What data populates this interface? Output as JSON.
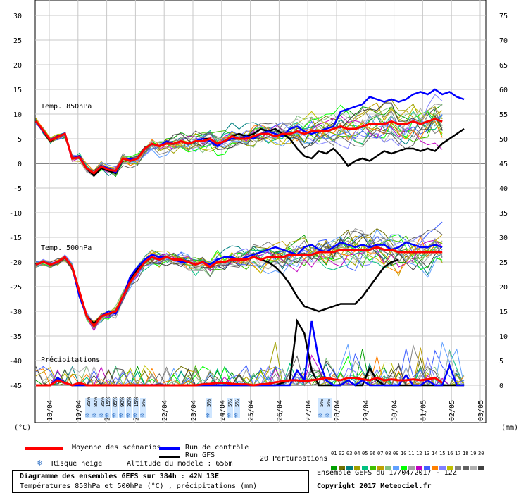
{
  "chart_data": {
    "type": "line",
    "title": "Diagramme des ensembles GEFS sur 384h : 42N 13E",
    "subtitle": "Températures 850hPa et 500hPa (°C) , précipitations (mm)",
    "left_axis": {
      "unit": "(°C)",
      "ticks": [
        30,
        25,
        20,
        15,
        10,
        5,
        0,
        -5,
        -10,
        -15,
        -20,
        -25,
        -30,
        -35,
        -40,
        -45
      ]
    },
    "right_axis": {
      "unit": "(mm)",
      "ticks": [
        75,
        70,
        65,
        60,
        55,
        50,
        45,
        40,
        35,
        30,
        25,
        20,
        15,
        10,
        5,
        0
      ],
      "ylim": [
        0,
        75
      ]
    },
    "x_labels": [
      "18/04",
      "19/04",
      "20/04",
      "21/04",
      "22/04",
      "23/04",
      "24/04",
      "25/04",
      "26/04",
      "27/04",
      "28/04",
      "29/04",
      "30/04",
      "01/05",
      "02/05",
      "03/05"
    ],
    "panel_labels": {
      "t850": "Temp. 850hPa",
      "t500": "Temp. 500hPa",
      "precip": "Précipitations"
    },
    "series": [
      {
        "name": "Moyenne des scénarios",
        "color": "#ff0000",
        "t850": [
          8.6,
          6.7,
          4.7,
          5.4,
          6.0,
          1.0,
          1.2,
          -1.0,
          -2.0,
          -0.6,
          -1.3,
          -1.5,
          1.0,
          0.5,
          1.0,
          3.0,
          4.0,
          3.5,
          4.0,
          4.0,
          4.5,
          4.0,
          4.5,
          4.5,
          5.0,
          4.0,
          4.5,
          5.5,
          5.0,
          5.0,
          5.5,
          6.0,
          6.0,
          5.5,
          6.0,
          6.0,
          6.5,
          6.0,
          6.5,
          6.5,
          6.5,
          7.0,
          7.5,
          7.0,
          7.0,
          7.5,
          8.0,
          8.0,
          8.0,
          8.5,
          8.0,
          8.0,
          8.5,
          8.0,
          8.5,
          9.0,
          8.5
        ],
        "t500": [
          -20.5,
          -20.0,
          -20.5,
          -20.0,
          -19.0,
          -21.0,
          -26.0,
          -31.0,
          -33.0,
          -31.0,
          -30.5,
          -30.0,
          -27.0,
          -24.0,
          -22.0,
          -20.0,
          -19.0,
          -19.5,
          -19.0,
          -19.5,
          -19.5,
          -20.0,
          -20.5,
          -20.0,
          -21.0,
          -20.0,
          -20.0,
          -19.5,
          -19.5,
          -19.5,
          -19.0,
          -19.5,
          -19.0,
          -19.0,
          -19.0,
          -18.5,
          -18.5,
          -18.5,
          -18.5,
          -18.0,
          -18.0,
          -18.0,
          -17.5,
          -17.5,
          -17.5,
          -17.5,
          -17.5,
          -17.0,
          -17.5,
          -17.5,
          -18.0,
          -18.0,
          -18.0,
          -18.0,
          -18.0,
          -18.0,
          -18.0
        ],
        "precip": [
          0.0,
          0.0,
          0.0,
          1.0,
          0.5,
          0.0,
          0.5,
          0.0,
          0.0,
          0.0,
          0.0,
          0.0,
          0.0,
          0.0,
          0.0,
          0.0,
          0.0,
          0.0,
          0.0,
          0.0,
          0.0,
          0.0,
          0.0,
          0.2,
          0.3,
          0.5,
          0.5,
          0.3,
          0.2,
          0.2,
          0.0,
          0.2,
          0.3,
          0.6,
          0.8,
          1.0,
          1.0,
          0.8,
          1.0,
          1.2,
          1.5,
          1.2,
          1.0,
          1.5,
          1.5,
          1.2,
          1.0,
          1.5,
          1.0,
          1.2,
          1.0,
          1.0,
          1.2,
          1.0,
          1.2,
          1.5,
          0.5
        ]
      },
      {
        "name": "Run de contrôle",
        "color": "#0000ff",
        "t850": [
          8.5,
          6.5,
          4.8,
          5.5,
          6.1,
          1.0,
          1.5,
          -1.0,
          -2.0,
          -0.5,
          -1.0,
          -1.8,
          1.0,
          0.8,
          1.0,
          3.0,
          4.0,
          3.5,
          4.5,
          4.0,
          4.5,
          4.0,
          4.5,
          5.0,
          4.5,
          3.5,
          4.5,
          5.0,
          5.0,
          5.5,
          5.0,
          6.0,
          6.5,
          6.0,
          5.5,
          7.0,
          7.5,
          6.5,
          6.0,
          6.5,
          7.0,
          7.5,
          10.5,
          11.0,
          11.5,
          12.0,
          13.5,
          13.0,
          12.5,
          13.0,
          12.5,
          13.0,
          14.0,
          14.5,
          14.0,
          15.0,
          14.0,
          14.5,
          13.5,
          13.0
        ],
        "t500": [
          -20.5,
          -20.0,
          -20.5,
          -20.0,
          -19.0,
          -21.0,
          -27.0,
          -31.0,
          -33.0,
          -31.0,
          -30.0,
          -30.5,
          -27.0,
          -23.0,
          -21.0,
          -19.5,
          -18.5,
          -19.0,
          -19.0,
          -19.5,
          -20.0,
          -20.0,
          -20.5,
          -20.0,
          -20.5,
          -19.5,
          -19.0,
          -19.0,
          -19.5,
          -19.0,
          -18.5,
          -18.0,
          -17.5,
          -17.0,
          -17.5,
          -18.0,
          -18.5,
          -17.0,
          -16.5,
          -17.5,
          -18.0,
          -17.0,
          -16.0,
          -16.5,
          -17.0,
          -16.5,
          -17.0,
          -16.5,
          -16.5,
          -17.5,
          -17.0,
          -16.0,
          -16.5,
          -17.0,
          -17.0,
          -16.5,
          -17.0
        ],
        "precip": [
          0,
          0,
          0,
          1.5,
          0.5,
          0,
          0,
          0,
          0,
          0,
          0,
          0,
          0,
          0,
          0,
          0,
          0,
          0,
          0,
          0,
          0,
          0,
          0,
          0,
          0,
          0,
          0,
          0,
          0,
          0,
          0,
          0,
          0,
          0,
          0,
          0,
          3,
          1,
          13,
          5,
          1,
          0,
          0,
          1,
          0,
          1,
          0,
          0,
          0,
          0,
          0,
          2,
          0,
          0,
          1,
          0,
          0,
          4,
          0,
          0
        ]
      },
      {
        "name": "Run GFS",
        "color": "#000000",
        "t850": [
          8.5,
          6.5,
          4.5,
          5.5,
          6.0,
          1.0,
          1.5,
          -1.0,
          -2.5,
          -1.0,
          -1.5,
          -2.0,
          1.0,
          0.5,
          1.0,
          3.0,
          4.0,
          3.5,
          4.0,
          4.0,
          4.5,
          4.0,
          4.5,
          5.0,
          5.0,
          4.0,
          4.5,
          5.5,
          6.0,
          5.5,
          6.0,
          7.0,
          6.5,
          7.0,
          6.0,
          5.0,
          3.0,
          1.5,
          1.0,
          2.5,
          2.0,
          3.0,
          1.5,
          -0.5,
          0.5,
          1.0,
          0.5,
          1.5,
          2.5,
          2.0,
          2.5,
          3.0,
          3.0,
          2.5,
          3.0,
          2.5,
          4.0,
          5.0,
          6.0,
          7.0
        ],
        "t500": [
          -20.5,
          -20.0,
          -20.5,
          -20.0,
          -19.0,
          -21.0,
          -26.0,
          -31.0,
          -32.5,
          -31.0,
          -30.5,
          -30.0,
          -27.0,
          -23.5,
          -21.5,
          -20.0,
          -19.0,
          -19.5,
          -19.0,
          -19.5,
          -19.5,
          -20.0,
          -20.5,
          -20.0,
          -21.0,
          -20.0,
          -20.0,
          -19.5,
          -19.5,
          -19.5,
          -19.0,
          -19.5,
          -20.0,
          -21.0,
          -22.5,
          -24.5,
          -27.0,
          -29.0,
          -29.5,
          -30.0,
          -29.5,
          -29.0,
          -28.5,
          -28.5,
          -28.5,
          -27.0,
          -25.0,
          -23.0,
          -21.0,
          -20.0,
          -19.5
        ],
        "precip": [
          0,
          0,
          0,
          1.5,
          0.5,
          0,
          0,
          0,
          0,
          0,
          0,
          0,
          0,
          0,
          0,
          0,
          0,
          0,
          0,
          0,
          0,
          0,
          0,
          0,
          0,
          0,
          0,
          0,
          0,
          0,
          0,
          0,
          0,
          0,
          0.5,
          1.0,
          13.0,
          10.5,
          3.0,
          0,
          0,
          0,
          0,
          1.0,
          0,
          0,
          3.5,
          1.0,
          0,
          0,
          0,
          0,
          0,
          0,
          0,
          0,
          0,
          0,
          0,
          0
        ]
      }
    ],
    "snow_risk": [
      {
        "x_label": "19/04",
        "values": [
          "35%",
          "80%",
          "35%"
        ]
      },
      {
        "x_label": "20/04",
        "values": [
          "15%",
          "85%",
          "90%",
          "30%",
          "15%",
          "5%"
        ]
      },
      {
        "x_label": "23/04",
        "values": [
          "5%"
        ]
      },
      {
        "x_label": "24/04",
        "values": [
          "5%",
          "5%"
        ]
      },
      {
        "x_label": "27/04",
        "values": [
          "5%",
          "5%"
        ]
      }
    ]
  },
  "legend": {
    "mean_label": "Moyenne des scénarios",
    "control_label": "Run de contrôle",
    "gfs_label": "Run GFS",
    "snow_label": "Risque neige",
    "altitude_label": "Altitude du modele : 656m",
    "perturbations_label": "20 Perturbations",
    "perturbation_numbers": [
      "01",
      "02",
      "03",
      "04",
      "05",
      "06",
      "07",
      "08",
      "09",
      "10",
      "11",
      "12",
      "13",
      "14",
      "15",
      "16",
      "17",
      "18",
      "19",
      "20"
    ],
    "perturbation_colors": [
      "#00a000",
      "#707000",
      "#008080",
      "#a0a000",
      "#00c080",
      "#40c000",
      "#c0a000",
      "#80c080",
      "#60a0ff",
      "#00ff00",
      "#a0a0a0",
      "#c000c0",
      "#4060ff",
      "#ff8000",
      "#8080ff",
      "#c0c000",
      "#808080",
      "#606060",
      "#b0b0b0",
      "#404040"
    ]
  },
  "footer": {
    "title": "Diagramme des ensembles GEFS sur 384h : 42N 13E",
    "subtitle": "Températures 850hPa et 500hPa (°C) , précipitations (mm)",
    "run": "Ensemble GEFS du 17/04/2017 - 12Z",
    "copyright": "Copyright 2017 Meteociel.fr"
  }
}
